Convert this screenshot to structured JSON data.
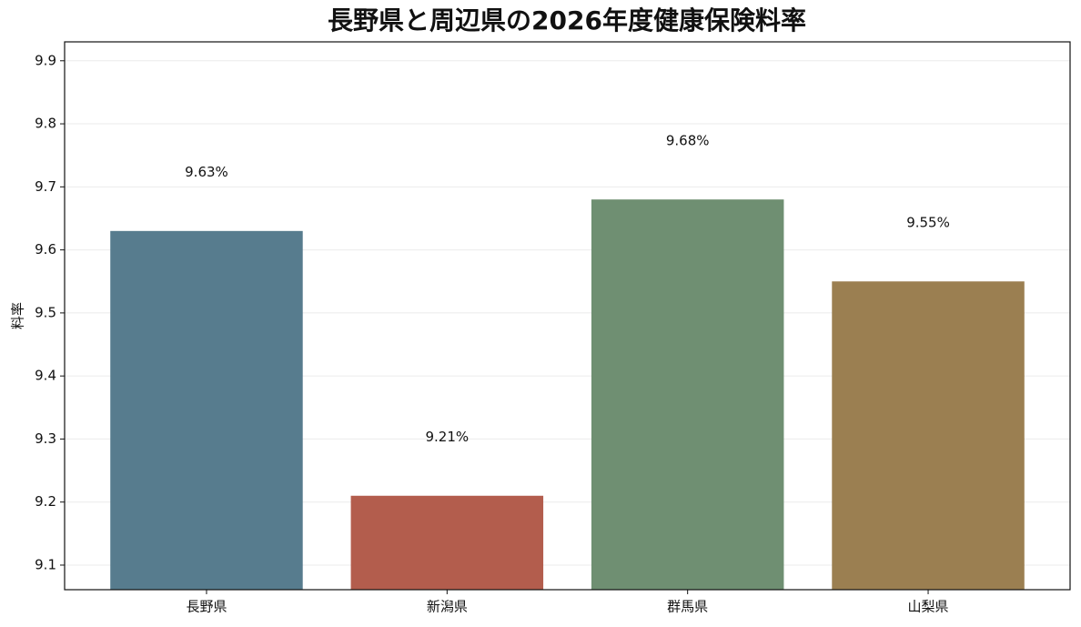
{
  "chart_data": {
    "type": "bar",
    "title": "長野県と周辺県の2026年度健康保険料率",
    "y_label": "料率",
    "categories": [
      "長野県",
      "新潟県",
      "群馬県",
      "山梨県"
    ],
    "values": [
      9.63,
      9.21,
      9.68,
      9.55
    ],
    "value_labels": [
      "9.63%",
      "9.21%",
      "9.68%",
      "9.55%"
    ],
    "colors": [
      "#577c8e",
      "#b35d4d",
      "#6f8f72",
      "#9b7f51"
    ],
    "ylim": [
      9.061,
      9.93
    ],
    "yticks": [
      9.1,
      9.2,
      9.3,
      9.4,
      9.5,
      9.6,
      9.7,
      9.8,
      9.9
    ],
    "grid": true
  }
}
